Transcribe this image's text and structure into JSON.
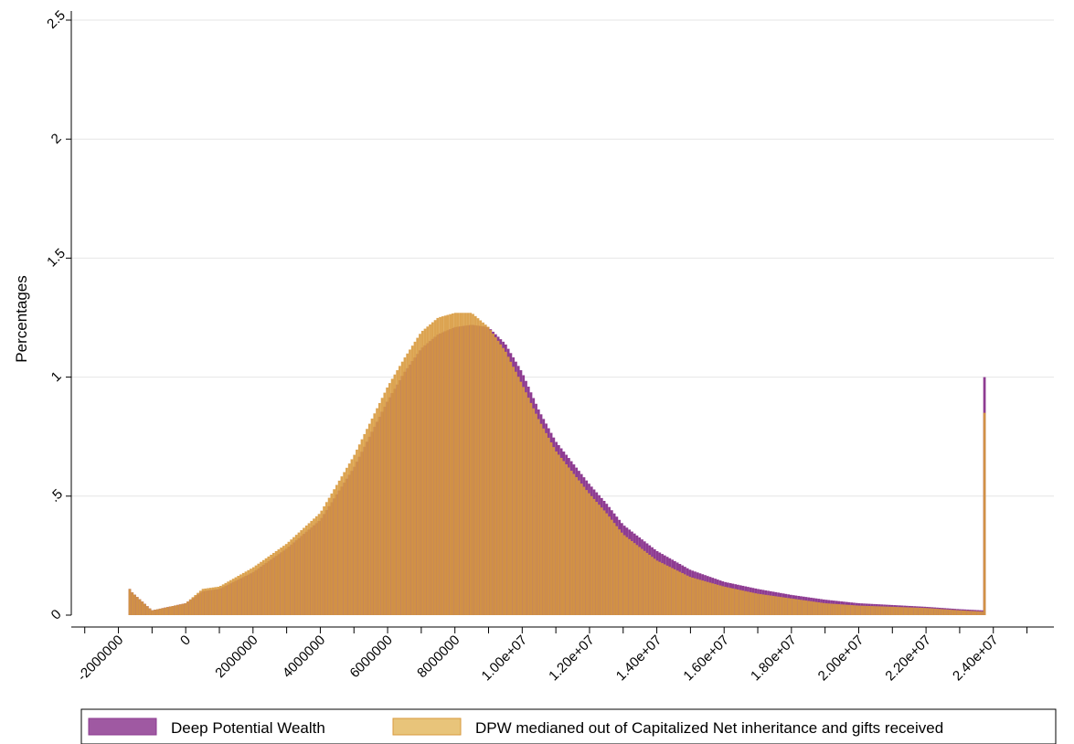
{
  "chart_data": {
    "type": "bar",
    "title": "",
    "xlabel": "",
    "ylabel": "Percentages",
    "xlim": [
      -3400000,
      25800000
    ],
    "ylim": [
      0,
      2.5
    ],
    "grid": true,
    "legend_position": "bottom",
    "x_ticks": [
      -2000000,
      0,
      2000000,
      4000000,
      6000000,
      8000000,
      10000000,
      12000000,
      14000000,
      16000000,
      18000000,
      20000000,
      22000000,
      24000000
    ],
    "x_tick_labels": [
      "-2000000",
      "0",
      "2000000",
      "4000000",
      "6000000",
      "8000000",
      "1.00e+07",
      "1.20e+07",
      "1.40e+07",
      "1.60e+07",
      "1.80e+07",
      "2.00e+07",
      "2.20e+07",
      "2.40e+07"
    ],
    "y_ticks": [
      0,
      0.5,
      1,
      1.5,
      2,
      2.5
    ],
    "y_tick_labels": [
      "0",
      ".5",
      "1",
      "1.5",
      "2",
      "2.5"
    ],
    "x": [
      -1700000,
      -1000000,
      0,
      500000,
      1000000,
      2000000,
      3000000,
      4000000,
      5000000,
      6000000,
      6500000,
      7000000,
      7500000,
      8000000,
      8500000,
      9000000,
      9500000,
      10000000,
      10500000,
      11000000,
      12000000,
      12500000,
      13000000,
      14000000,
      15000000,
      16000000,
      17000000,
      18000000,
      19000000,
      20000000,
      22000000,
      23000000,
      23700000,
      23800000
    ],
    "series": [
      {
        "name": "Deep Potential Wealth",
        "color": "#8e3c92",
        "values": [
          0.11,
          0.02,
          0.05,
          0.1,
          0.11,
          0.18,
          0.28,
          0.4,
          0.62,
          0.9,
          1.02,
          1.12,
          1.18,
          1.21,
          1.22,
          1.21,
          1.14,
          1.02,
          0.86,
          0.73,
          0.55,
          0.47,
          0.38,
          0.27,
          0.19,
          0.14,
          0.11,
          0.085,
          0.065,
          0.05,
          0.035,
          0.025,
          0.02,
          1.0
        ]
      },
      {
        "name": "DPW medianed out of Capitalized Net inheritance and gifts received",
        "color": "#d89a3e",
        "values": [
          0.11,
          0.02,
          0.05,
          0.11,
          0.12,
          0.2,
          0.3,
          0.43,
          0.67,
          0.96,
          1.08,
          1.19,
          1.25,
          1.27,
          1.27,
          1.21,
          1.11,
          0.97,
          0.82,
          0.69,
          0.51,
          0.43,
          0.34,
          0.23,
          0.16,
          0.12,
          0.09,
          0.07,
          0.05,
          0.04,
          0.03,
          0.02,
          0.015,
          0.85
        ]
      }
    ]
  }
}
